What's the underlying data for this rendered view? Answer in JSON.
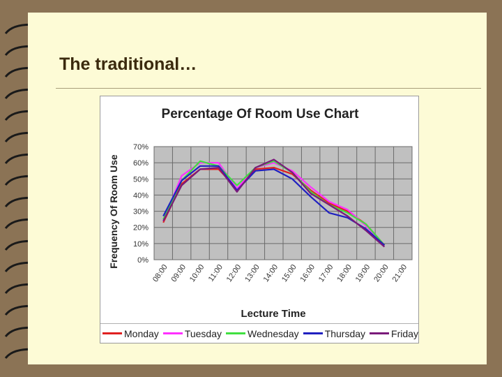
{
  "slide": {
    "title": "The traditional…"
  },
  "colors": {
    "background": "#8b7355",
    "paper": "#fdfbd6",
    "plot_area": "#c0c0c0"
  },
  "chart_data": {
    "type": "line",
    "title": "Percentage Of Room Use Chart",
    "xlabel": "Lecture Time",
    "ylabel": "Frequency Of Room Use",
    "y_ticks": [
      "0%",
      "10%",
      "20%",
      "30%",
      "40%",
      "50%",
      "60%",
      "70%"
    ],
    "x_ticks": [
      "08:00",
      "09:00",
      "10:00",
      "11:00",
      "12:00",
      "13:00",
      "14:00",
      "15:00",
      "16:00",
      "17:00",
      "18:00",
      "19:00",
      "20:00",
      "21:00"
    ],
    "ylim": [
      0,
      70
    ],
    "grid": true,
    "legend_position": "bottom",
    "series": [
      {
        "name": "Monday",
        "color": "#e02020",
        "values": [
          23,
          47,
          56,
          56,
          44,
          56,
          57,
          53,
          43,
          35,
          30,
          22,
          9
        ]
      },
      {
        "name": "Tuesday",
        "color": "#ff30ff",
        "values": [
          24,
          52,
          60,
          60,
          44,
          57,
          60,
          55,
          45,
          36,
          31,
          21,
          9
        ]
      },
      {
        "name": "Wednesday",
        "color": "#40e040",
        "values": [
          25,
          49,
          61,
          58,
          46,
          57,
          61,
          54,
          42,
          34,
          29,
          22,
          9
        ]
      },
      {
        "name": "Thursday",
        "color": "#2020c0",
        "values": [
          27,
          49,
          58,
          58,
          43,
          55,
          56,
          50,
          39,
          29,
          26,
          19,
          9
        ]
      },
      {
        "name": "Friday",
        "color": "#7a1a7a",
        "values": [
          24,
          46,
          56,
          57,
          42,
          57,
          62,
          54,
          41,
          34,
          27,
          18,
          8
        ]
      }
    ]
  }
}
